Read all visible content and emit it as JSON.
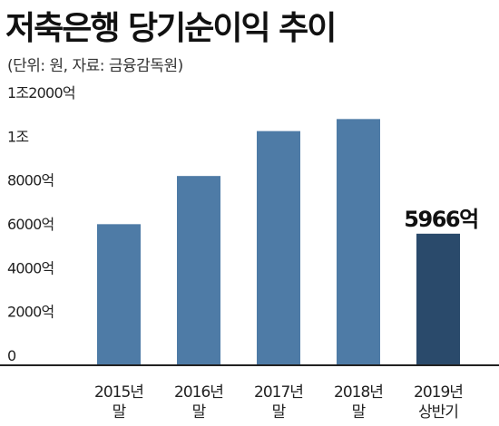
{
  "header": {
    "title": "저축은행 당기순이익 추이",
    "subtitle": "(단위: 원, 자료: 금융감독원)"
  },
  "colors": {
    "bar": "#4e7ba6",
    "bar_highlight": "#2a4a6b",
    "axis": "#222222"
  },
  "chart_data": {
    "type": "bar",
    "title": "저축은행 당기순이익 추이",
    "subtitle": "(단위: 원, 자료: 금융감독원)",
    "categories": [
      [
        "2015년",
        "말"
      ],
      [
        "2016년",
        "말"
      ],
      [
        "2017년",
        "말"
      ],
      [
        "2018년",
        "말"
      ],
      [
        "2019년",
        "상반기"
      ]
    ],
    "values": [
      6400,
      8600,
      10650,
      11200,
      5966
    ],
    "highlight_index": 4,
    "data_labels": [
      null,
      null,
      null,
      null,
      "5966억"
    ],
    "yticks": [
      {
        "value": 0,
        "label": "0"
      },
      {
        "value": 2000,
        "label": "2000억"
      },
      {
        "value": 4000,
        "label": "4000억"
      },
      {
        "value": 6000,
        "label": "6000억"
      },
      {
        "value": 8000,
        "label": "8000억"
      },
      {
        "value": 10000,
        "label": "1조"
      },
      {
        "value": 12000,
        "label": "1조2000억"
      }
    ],
    "ylim": [
      0,
      12000
    ],
    "grid": false
  }
}
